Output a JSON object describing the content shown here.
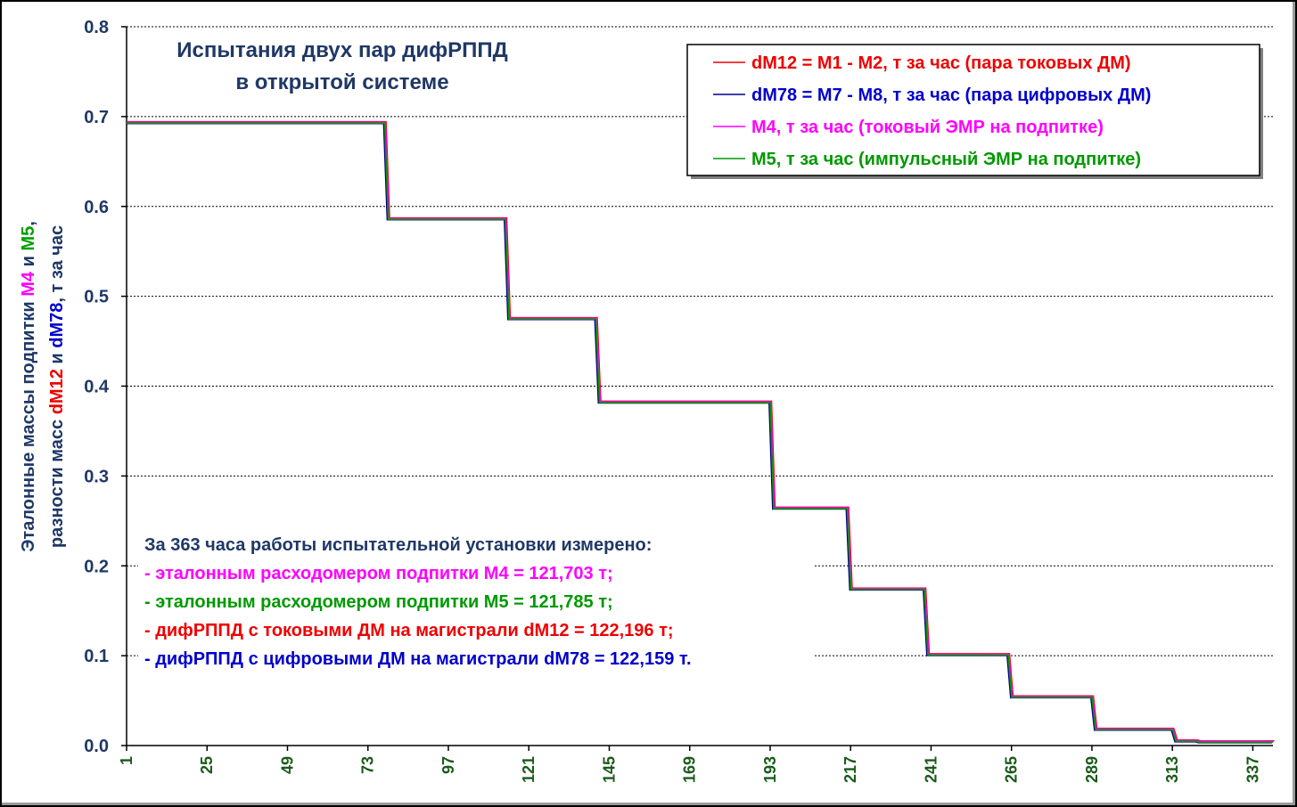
{
  "chart_data": {
    "type": "line",
    "title": [
      "Испытания двух пар дифРППД",
      "в открытой системе"
    ],
    "ylabel": {
      "line1": [
        {
          "text": "Эталонные массы подпитки ",
          "color": "#1f3866"
        },
        {
          "text": "М4",
          "color": "#ff00ff"
        },
        {
          "text": " и ",
          "color": "#1f3866"
        },
        {
          "text": "М5",
          "color": "#00a000"
        },
        {
          "text": ",",
          "color": "#1f3866"
        }
      ],
      "line2": [
        {
          "text": "разности масс ",
          "color": "#1f3866"
        },
        {
          "text": "dM12",
          "color": "#ee0000"
        },
        {
          "text": " и ",
          "color": "#1f3866"
        },
        {
          "text": "dM78",
          "color": "#0000cc"
        },
        {
          "text": ", т за час",
          "color": "#1f3866"
        }
      ]
    },
    "ylim": [
      0,
      0.8
    ],
    "y_ticks": [
      "0.0",
      "0.1",
      "0.2",
      "0.3",
      "0.4",
      "0.5",
      "0.6",
      "0.7",
      "0.8"
    ],
    "xlim": [
      1,
      343
    ],
    "x_ticks": [
      "1",
      "25",
      "49",
      "73",
      "97",
      "121",
      "145",
      "169",
      "193",
      "217",
      "241",
      "265",
      "289",
      "313",
      "337"
    ],
    "grid": "horizontal dotted",
    "legend_position": "top-right",
    "steps": [
      {
        "x_end": 78,
        "y": 0.693
      },
      {
        "x_end": 114,
        "y": 0.586
      },
      {
        "x_end": 141,
        "y": 0.475
      },
      {
        "x_end": 193,
        "y": 0.382
      },
      {
        "x_end": 216,
        "y": 0.264
      },
      {
        "x_end": 239,
        "y": 0.174
      },
      {
        "x_end": 264,
        "y": 0.101
      },
      {
        "x_end": 289,
        "y": 0.054
      },
      {
        "x_end": 313,
        "y": 0.018
      },
      {
        "x_end": 320,
        "y": 0.005
      },
      {
        "x_end": 343,
        "y": 0.004
      }
    ],
    "series": [
      {
        "name": "dM12 = M1 - M2, т за час (пара токовых ДМ)",
        "color": "#ee0000",
        "text_color": "#ee0000"
      },
      {
        "name": "dM78 = M7 - M8, т за час (пара цифровых ДМ)",
        "color": "#000088",
        "text_color": "#0000cc"
      },
      {
        "name": "M4, т за час (токовый ЭМР на подпитке)",
        "color": "#ff00ff",
        "text_color": "#ff00ff"
      },
      {
        "name": "M5, т за час (импульсный ЭМР на подпитке)",
        "color": "#009900",
        "text_color": "#009900"
      }
    ],
    "annotation": [
      {
        "text": "За 363 часа работы испытательной установки измерено:",
        "color": "#1f3866"
      },
      {
        "text": "- эталонным расходомером подпитки М4 = 121,703 т;",
        "color": "#ff00ff"
      },
      {
        "text": "- эталонным расходомером подпитки М5 = 121,785 т;",
        "color": "#009900"
      },
      {
        "text": "- дифРППД с токовыми ДМ на магистрали dM12 = 122,196 т;",
        "color": "#ee0000"
      },
      {
        "text": "- дифРППД с цифровыми ДМ на магистрали dM78 = 122,159 т.",
        "color": "#0000cc"
      }
    ]
  }
}
